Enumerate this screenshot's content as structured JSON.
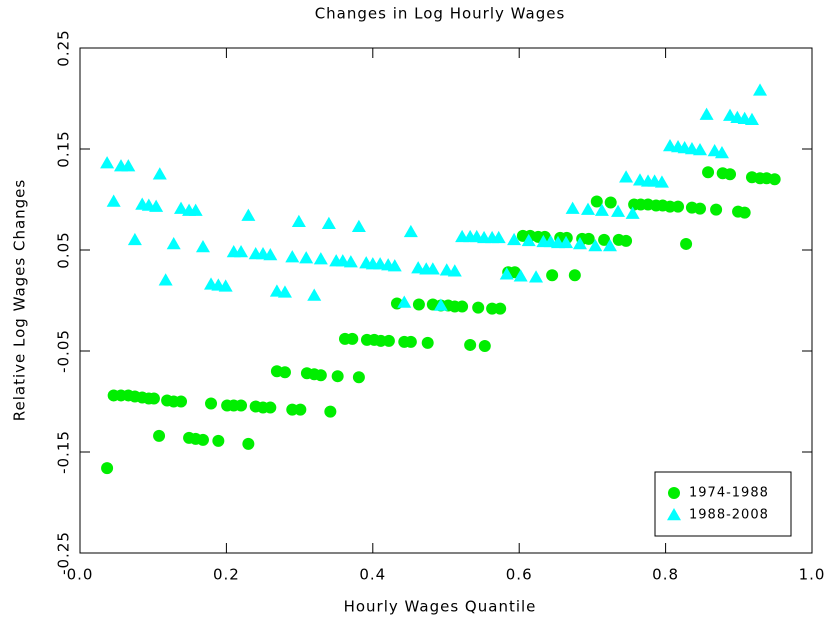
{
  "chart_data": {
    "type": "scatter",
    "title": "Changes in Log Hourly Wages",
    "xlabel": "Hourly Wages Quantile",
    "ylabel": "Relative Log Wages Changes",
    "xlim": [
      0,
      1
    ],
    "ylim": [
      -0.25,
      0.25
    ],
    "xticks": [
      {
        "value": 0,
        "label": "0.0"
      },
      0.2,
      0.4,
      0.6,
      0.8,
      {
        "value": 1,
        "label": "1.0"
      }
    ],
    "yticks": [
      -0.25,
      -0.15,
      -0.05,
      0.05,
      0.15,
      0.25
    ],
    "legend": "lower right",
    "series": [
      {
        "name": "1974-1988",
        "color": "#00ee00",
        "marker": "circle",
        "x": [
          0.037,
          0.046,
          0.056,
          0.066,
          0.075,
          0.085,
          0.094,
          0.101,
          0.108,
          0.119,
          0.128,
          0.138,
          0.149,
          0.158,
          0.168,
          0.179,
          0.189,
          0.201,
          0.21,
          0.22,
          0.23,
          0.24,
          0.25,
          0.26,
          0.269,
          0.28,
          0.29,
          0.301,
          0.31,
          0.32,
          0.329,
          0.342,
          0.352,
          0.362,
          0.372,
          0.381,
          0.392,
          0.402,
          0.411,
          0.422,
          0.433,
          0.443,
          0.452,
          0.463,
          0.475,
          0.482,
          0.493,
          0.503,
          0.512,
          0.522,
          0.533,
          0.544,
          0.553,
          0.563,
          0.574,
          0.585,
          0.594,
          0.605,
          0.615,
          0.626,
          0.635,
          0.645,
          0.656,
          0.665,
          0.676,
          0.686,
          0.695,
          0.706,
          0.716,
          0.725,
          0.736,
          0.746,
          0.757,
          0.766,
          0.776,
          0.787,
          0.796,
          0.806,
          0.817,
          0.828,
          0.836,
          0.847,
          0.858,
          0.869,
          0.878,
          0.888,
          0.899,
          0.908,
          0.918,
          0.929,
          0.938,
          0.949
        ],
        "y": [
          -0.166,
          -0.094,
          -0.094,
          -0.094,
          -0.095,
          -0.096,
          -0.097,
          -0.097,
          -0.134,
          -0.099,
          -0.1,
          -0.1,
          -0.136,
          -0.137,
          -0.138,
          -0.102,
          -0.139,
          -0.104,
          -0.104,
          -0.104,
          -0.142,
          -0.105,
          -0.106,
          -0.106,
          -0.07,
          -0.071,
          -0.108,
          -0.108,
          -0.072,
          -0.073,
          -0.074,
          -0.11,
          -0.075,
          -0.038,
          -0.038,
          -0.076,
          -0.039,
          -0.039,
          -0.04,
          -0.04,
          -0.003,
          -0.041,
          -0.041,
          -0.004,
          -0.042,
          -0.004,
          -0.005,
          -0.005,
          -0.006,
          -0.006,
          -0.044,
          -0.007,
          -0.045,
          -0.008,
          -0.008,
          0.028,
          0.028,
          0.064,
          0.064,
          0.063,
          0.063,
          0.025,
          0.062,
          0.062,
          0.025,
          0.061,
          0.061,
          0.098,
          0.06,
          0.097,
          0.06,
          0.059,
          0.095,
          0.095,
          0.095,
          0.094,
          0.094,
          0.093,
          0.093,
          0.056,
          0.092,
          0.091,
          0.127,
          0.09,
          0.126,
          0.125,
          0.088,
          0.087,
          0.122,
          0.121,
          0.121,
          0.12
        ]
      },
      {
        "name": "1988-2008",
        "color": "#00ffff",
        "marker": "triangle",
        "x": [
          0.037,
          0.046,
          0.056,
          0.066,
          0.075,
          0.085,
          0.094,
          0.104,
          0.109,
          0.117,
          0.128,
          0.138,
          0.149,
          0.158,
          0.168,
          0.179,
          0.189,
          0.199,
          0.21,
          0.22,
          0.23,
          0.24,
          0.25,
          0.26,
          0.269,
          0.28,
          0.29,
          0.299,
          0.309,
          0.32,
          0.329,
          0.34,
          0.35,
          0.359,
          0.37,
          0.381,
          0.391,
          0.4,
          0.41,
          0.421,
          0.43,
          0.443,
          0.452,
          0.462,
          0.473,
          0.482,
          0.493,
          0.501,
          0.512,
          0.522,
          0.533,
          0.542,
          0.552,
          0.563,
          0.572,
          0.583,
          0.593,
          0.602,
          0.613,
          0.623,
          0.633,
          0.643,
          0.653,
          0.664,
          0.673,
          0.683,
          0.694,
          0.704,
          0.713,
          0.724,
          0.735,
          0.746,
          0.755,
          0.765,
          0.776,
          0.785,
          0.795,
          0.806,
          0.817,
          0.826,
          0.836,
          0.847,
          0.856,
          0.867,
          0.877,
          0.888,
          0.898,
          0.908,
          0.918,
          0.929
        ],
        "y": [
          0.136,
          0.098,
          0.133,
          0.133,
          0.06,
          0.095,
          0.094,
          0.093,
          0.125,
          0.02,
          0.056,
          0.091,
          0.089,
          0.089,
          0.053,
          0.016,
          0.015,
          0.014,
          0.048,
          0.048,
          0.084,
          0.046,
          0.046,
          0.045,
          0.009,
          0.008,
          0.043,
          0.078,
          0.042,
          0.005,
          0.041,
          0.076,
          0.039,
          0.039,
          0.038,
          0.073,
          0.037,
          0.036,
          0.036,
          0.035,
          0.034,
          -0.002,
          0.068,
          0.032,
          0.031,
          0.031,
          -0.005,
          0.03,
          0.029,
          0.063,
          0.063,
          0.063,
          0.062,
          0.062,
          0.062,
          0.026,
          0.06,
          0.024,
          0.059,
          0.023,
          0.058,
          0.058,
          0.057,
          0.057,
          0.091,
          0.056,
          0.09,
          0.054,
          0.089,
          0.054,
          0.088,
          0.122,
          0.086,
          0.119,
          0.118,
          0.118,
          0.117,
          0.153,
          0.152,
          0.151,
          0.15,
          0.149,
          0.184,
          0.148,
          0.146,
          0.183,
          0.181,
          0.18,
          0.179,
          0.208
        ]
      }
    ]
  }
}
